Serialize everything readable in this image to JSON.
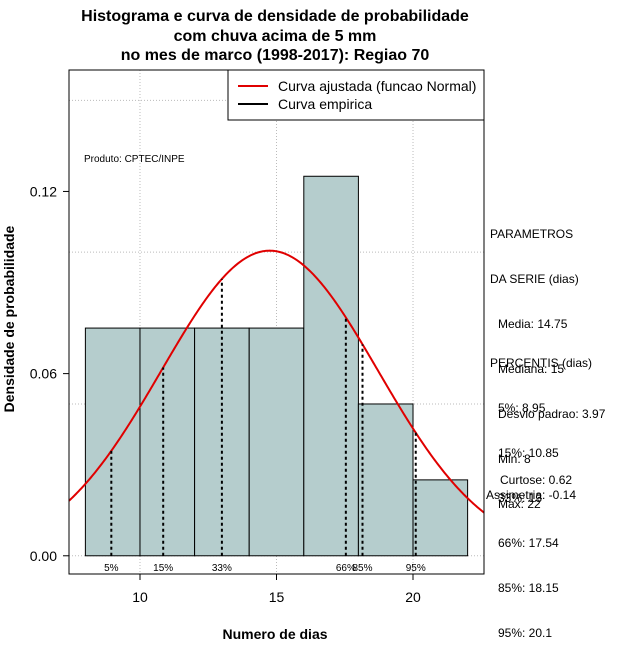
{
  "chart_data": {
    "type": "bar",
    "title": [
      "Histograma e curva de densidade de probabilidade",
      "com chuva acima de 5 mm",
      "no mes de marco (1998-2017): Regiao 70"
    ],
    "xlabel": "Numero de dias",
    "ylabel": "Densidade de probabilidade",
    "xlim": [
      7.4,
      22.6
    ],
    "ylim": [
      -0.006,
      0.16
    ],
    "x_ticks": [
      10,
      15,
      20
    ],
    "y_ticks": [
      0.0,
      0.06,
      0.12
    ],
    "y_tick_labels": [
      "0.00",
      "0.06",
      "0.12"
    ],
    "grid": true,
    "bins": [
      {
        "x0": 8,
        "x1": 10,
        "density": 0.075
      },
      {
        "x0": 10,
        "x1": 12,
        "density": 0.075
      },
      {
        "x0": 12,
        "x1": 14,
        "density": 0.075
      },
      {
        "x0": 14,
        "x1": 16,
        "density": 0.075
      },
      {
        "x0": 16,
        "x1": 18,
        "density": 0.125
      },
      {
        "x0": 18,
        "x1": 20,
        "density": 0.05
      },
      {
        "x0": 20,
        "x1": 22,
        "density": 0.025
      }
    ],
    "normal_fit": {
      "mean": 14.75,
      "sd": 3.97
    },
    "percentiles": [
      {
        "label": "5%",
        "x": 8.95
      },
      {
        "label": "15%",
        "x": 10.85
      },
      {
        "label": "33%",
        "x": 13
      },
      {
        "label": "66%",
        "x": 17.54
      },
      {
        "label": "85%",
        "x": 18.15
      },
      {
        "label": "95%",
        "x": 20.1
      }
    ],
    "legend": {
      "position": "top-right",
      "entries": [
        {
          "name": "Curva ajustada (funcao Normal)",
          "color": "#e00000"
        },
        {
          "name": "Curva empirica",
          "color": "#000000"
        }
      ]
    },
    "colors": {
      "bar_fill": "#b5cdcd",
      "curve": "#e00000"
    }
  },
  "produto": "Produto: CPTEC/INPE",
  "parametros": {
    "header": [
      "PARAMETROS",
      "DA SERIE (dias)"
    ],
    "lines": [
      "Media: 14.75",
      "Mediana: 15",
      "Desvio padrao: 3.97",
      "Min: 8",
      "Max: 22"
    ]
  },
  "percentis": {
    "header": "PERCENTIS (dias)",
    "lines": [
      "5%: 8.95",
      "15%: 10.85",
      "33%: 13",
      "66%: 17.54",
      "85%: 18.15",
      "95%: 20.1"
    ]
  },
  "curtose": "Curtose: 0.62",
  "assimetria": "Assimetria: -0.14"
}
